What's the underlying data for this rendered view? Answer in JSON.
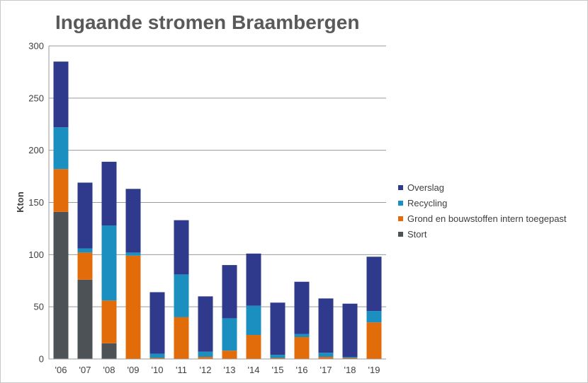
{
  "chart_data": {
    "type": "bar",
    "stacked": true,
    "title": "Ingaande stromen Braambergen",
    "xlabel": "",
    "ylabel": "Kton",
    "ylim": [
      0,
      300
    ],
    "yticks": [
      0,
      50,
      100,
      150,
      200,
      250,
      300
    ],
    "grid": true,
    "legend_position": "right",
    "categories": [
      "'06",
      "'07",
      "'08",
      "'09",
      "'10",
      "'11",
      "'12",
      "'13",
      "'14",
      "'15",
      "'16",
      "'17",
      "'18",
      "'19"
    ],
    "series": [
      {
        "name": "Stort",
        "color": "#4d5256",
        "values": [
          141,
          76,
          15,
          0,
          0,
          0,
          0,
          0,
          0,
          0,
          0,
          0,
          0,
          0
        ]
      },
      {
        "name": "Grond en bouwstoffen intern toegepast",
        "color": "#e36c0a",
        "values": [
          41,
          26,
          41,
          99,
          1,
          40,
          2,
          8,
          23,
          1,
          21,
          2,
          1,
          35
        ]
      },
      {
        "name": "Recycling",
        "color": "#1a8fc0",
        "values": [
          40,
          4,
          72,
          3,
          4,
          41,
          5,
          31,
          28,
          3,
          3,
          4,
          1,
          11
        ]
      },
      {
        "name": "Overslag",
        "color": "#2f3a8c",
        "values": [
          63,
          63,
          61,
          61,
          59,
          52,
          53,
          51,
          50,
          50,
          50,
          52,
          51,
          52
        ]
      }
    ],
    "legend_order": [
      "Overslag",
      "Recycling",
      "Grond en bouwstoffen intern toegepast",
      "Stort"
    ]
  }
}
